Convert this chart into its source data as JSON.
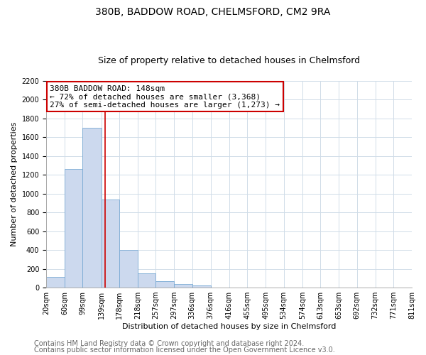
{
  "title": "380B, BADDOW ROAD, CHELMSFORD, CM2 9RA",
  "subtitle": "Size of property relative to detached houses in Chelmsford",
  "xlabel": "Distribution of detached houses by size in Chelmsford",
  "ylabel": "Number of detached properties",
  "bar_left_edges": [
    20,
    60,
    99,
    139,
    178,
    218,
    257,
    297,
    336,
    376,
    416,
    455,
    495,
    534,
    574,
    613,
    653,
    692,
    732,
    771
  ],
  "bar_heights": [
    115,
    1260,
    1700,
    940,
    400,
    150,
    65,
    35,
    20,
    0,
    0,
    0,
    0,
    0,
    0,
    0,
    0,
    0,
    0,
    0
  ],
  "bar_color": "#ccd9ee",
  "bar_edge_color": "#7aaad4",
  "reference_line_x": 148,
  "reference_line_color": "#cc0000",
  "ylim": [
    0,
    2200
  ],
  "yticks": [
    0,
    200,
    400,
    600,
    800,
    1000,
    1200,
    1400,
    1600,
    1800,
    2000,
    2200
  ],
  "xtick_labels": [
    "20sqm",
    "60sqm",
    "99sqm",
    "139sqm",
    "178sqm",
    "218sqm",
    "257sqm",
    "297sqm",
    "336sqm",
    "376sqm",
    "416sqm",
    "455sqm",
    "495sqm",
    "534sqm",
    "574sqm",
    "613sqm",
    "653sqm",
    "692sqm",
    "732sqm",
    "771sqm",
    "811sqm"
  ],
  "annotation_line1": "380B BADDOW ROAD: 148sqm",
  "annotation_line2": "← 72% of detached houses are smaller (3,368)",
  "annotation_line3": "27% of semi-detached houses are larger (1,273) →",
  "footer_line1": "Contains HM Land Registry data © Crown copyright and database right 2024.",
  "footer_line2": "Contains public sector information licensed under the Open Government Licence v3.0.",
  "grid_color": "#d0dce8",
  "background_color": "#ffffff",
  "title_fontsize": 10,
  "subtitle_fontsize": 9,
  "annotation_fontsize": 8,
  "ylabel_fontsize": 8,
  "xlabel_fontsize": 8,
  "footer_fontsize": 7,
  "tick_fontsize": 7
}
